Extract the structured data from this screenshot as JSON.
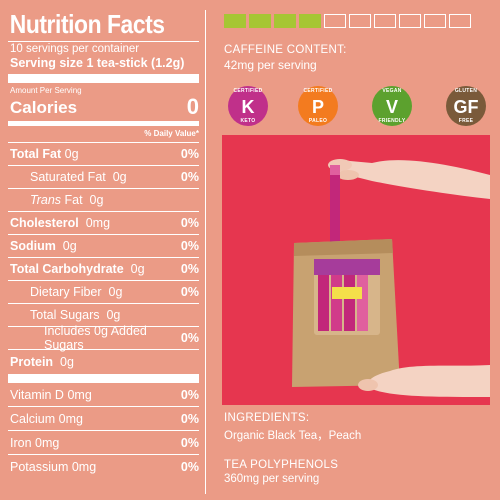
{
  "nutrition": {
    "title": "Nutrition Facts",
    "servings": "10 servings per container",
    "serving_size_label": "Serving size",
    "serving_size_value": "1 tea-stick (1.2g)",
    "amount_per_serving": "Amount Per Serving",
    "calories_label": "Calories",
    "calories_value": "0",
    "dv_header": "% Daily Value*",
    "rows": [
      {
        "label": "Total Fat",
        "value": "0g",
        "pct": "0%"
      },
      {
        "label": "Saturated Fat",
        "value": "0g",
        "pct": "0%"
      },
      {
        "label": "Trans",
        "suffix": "Fat",
        "value": "0g",
        "pct": ""
      },
      {
        "label": "Cholesterol",
        "value": "0mg",
        "pct": "0%"
      },
      {
        "label": "Sodium",
        "value": "0g",
        "pct": "0%"
      },
      {
        "label": "Total Carbohydrate",
        "value": "0g",
        "pct": "0%"
      },
      {
        "label": "Dietary Fiber",
        "value": "0g",
        "pct": "0%"
      },
      {
        "label": "Total Sugars",
        "value": "0g",
        "pct": ""
      },
      {
        "label": "Includes 0g Added Sugars",
        "value": "",
        "pct": "0%"
      },
      {
        "label": "Protein",
        "value": "0g",
        "pct": ""
      },
      {
        "label": "Vitamin D",
        "value": "0mg",
        "pct": "0%"
      },
      {
        "label": "Calcium",
        "value": "0mg",
        "pct": "0%"
      },
      {
        "label": "Iron",
        "value": "0mg",
        "pct": "0%"
      },
      {
        "label": "Potassium",
        "value": "0mg",
        "pct": "0%"
      }
    ]
  },
  "caffeine": {
    "meter_filled": 4,
    "meter_total": 10,
    "heading": "CAFFEINE CONTENT:",
    "value": "42mg per serving"
  },
  "badges": [
    {
      "top": "CERTIFIED",
      "letter": "K",
      "bottom": "KETO",
      "color": "#c0308a",
      "icon": "keto-badge-icon"
    },
    {
      "top": "CERTIFIED",
      "letter": "P",
      "bottom": "PALEO",
      "color": "#f37b1f",
      "icon": "paleo-badge-icon"
    },
    {
      "top": "VEGAN",
      "letter": "V",
      "bottom": "FRIENDLY",
      "color": "#5ca12e",
      "icon": "vegan-badge-icon"
    },
    {
      "top": "GLUTEN",
      "letter": "GF",
      "bottom": "FREE",
      "color": "#7a5a3a",
      "icon": "gluten-free-badge-icon"
    }
  ],
  "ingredients": {
    "heading": "INGREDIENTS:",
    "value": "Organic Black Tea，Peach"
  },
  "polyphenols": {
    "heading": "TEA POLYPHENOLS",
    "value": "360mg per serving"
  },
  "colors": {
    "background": "#eb9b86",
    "meter_on": "#a6c634",
    "photo_bg": "#e6364f"
  }
}
